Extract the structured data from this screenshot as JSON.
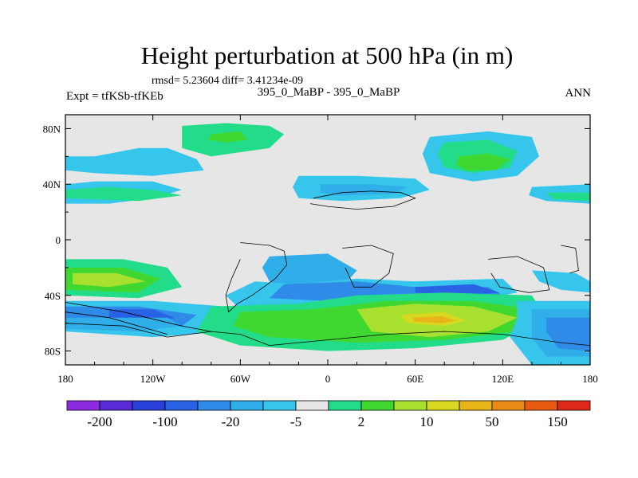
{
  "chart_data": {
    "type": "heatmap",
    "title": "Height perturbation at 500 hPa (in m)",
    "stats_line": "rmsd= 5.23604 diff= 3.41234e-09",
    "left_label": "Expt = tfKSb-tfKEb",
    "center_label": "395_0_MaBP - 395_0_MaBP",
    "right_label": "ANN",
    "x_ticks": [
      "180",
      "120W",
      "60W",
      "0",
      "60E",
      "120E",
      "180"
    ],
    "x_tick_values": [
      -180,
      -120,
      -60,
      0,
      60,
      120,
      180
    ],
    "y_ticks": [
      "80N",
      "40N",
      "0",
      "40S",
      "80S"
    ],
    "y_tick_values": [
      80,
      40,
      0,
      -40,
      -80
    ],
    "xlim": [
      -180,
      180
    ],
    "ylim": [
      -90,
      90
    ],
    "colorbar": {
      "colors": [
        "#8a2be2",
        "#5a2ad6",
        "#2840d8",
        "#2a62e6",
        "#2f8ae8",
        "#30aee9",
        "#36c6ec",
        "#e6e6e6",
        "#22dc8a",
        "#40d830",
        "#a8e030",
        "#d8d820",
        "#e8b418",
        "#e88a14",
        "#e85a10",
        "#e02818"
      ],
      "labels": [
        "-200",
        "-100",
        "-20",
        "-5",
        "2",
        "10",
        "50",
        "150"
      ]
    },
    "fields": [
      {
        "lon": -150,
        "lat": 12,
        "level": 1
      },
      {
        "lon": -100,
        "lat": -3,
        "level": 1
      }
    ]
  },
  "map": {
    "regions": [
      {
        "level": 1,
        "color_index": 6,
        "points": [
          [
            -180,
            60
          ],
          [
            -160,
            60
          ],
          [
            -130,
            66
          ],
          [
            -110,
            66
          ],
          [
            -90,
            58
          ],
          [
            -85,
            50
          ],
          [
            -120,
            46
          ],
          [
            -160,
            48
          ],
          [
            -180,
            50
          ]
        ]
      },
      {
        "level": 1,
        "color_index": 6,
        "points": [
          [
            -180,
            26
          ],
          [
            -150,
            26
          ],
          [
            -120,
            30
          ],
          [
            -100,
            36
          ],
          [
            -120,
            42
          ],
          [
            -160,
            42
          ],
          [
            -180,
            40
          ]
        ]
      },
      {
        "level": 1,
        "color_index": 8,
        "points": [
          [
            -180,
            36
          ],
          [
            -150,
            38
          ],
          [
            -120,
            36
          ],
          [
            -100,
            32
          ],
          [
            -130,
            28
          ],
          [
            -180,
            30
          ]
        ]
      },
      {
        "level": 1,
        "color_index": 8,
        "points": [
          [
            -100,
            82
          ],
          [
            -70,
            84
          ],
          [
            -40,
            82
          ],
          [
            -30,
            76
          ],
          [
            -40,
            66
          ],
          [
            -80,
            60
          ],
          [
            -100,
            66
          ]
        ]
      },
      {
        "level": 1,
        "color_index": 9,
        "points": [
          [
            -80,
            76
          ],
          [
            -60,
            78
          ],
          [
            -55,
            72
          ],
          [
            -70,
            70
          ],
          [
            -82,
            72
          ]
        ]
      },
      {
        "level": 1,
        "color_index": 6,
        "points": [
          [
            70,
            74
          ],
          [
            110,
            78
          ],
          [
            140,
            74
          ],
          [
            145,
            60
          ],
          [
            130,
            46
          ],
          [
            100,
            42
          ],
          [
            70,
            48
          ],
          [
            65,
            62
          ]
        ]
      },
      {
        "level": 1,
        "color_index": 8,
        "points": [
          [
            80,
            70
          ],
          [
            110,
            72
          ],
          [
            130,
            64
          ],
          [
            125,
            52
          ],
          [
            100,
            48
          ],
          [
            80,
            52
          ],
          [
            75,
            62
          ]
        ]
      },
      {
        "level": 1,
        "color_index": 9,
        "points": [
          [
            90,
            60
          ],
          [
            110,
            62
          ],
          [
            125,
            58
          ],
          [
            115,
            50
          ],
          [
            95,
            50
          ],
          [
            88,
            54
          ]
        ]
      },
      {
        "level": 1,
        "color_index": 6,
        "points": [
          [
            -20,
            46
          ],
          [
            20,
            46
          ],
          [
            60,
            44
          ],
          [
            70,
            36
          ],
          [
            50,
            30
          ],
          [
            10,
            28
          ],
          [
            -20,
            30
          ],
          [
            -24,
            38
          ]
        ]
      },
      {
        "level": 1,
        "color_index": 5,
        "points": [
          [
            -5,
            40
          ],
          [
            30,
            40
          ],
          [
            55,
            38
          ],
          [
            45,
            33
          ],
          [
            10,
            32
          ],
          [
            -5,
            34
          ]
        ]
      },
      {
        "level": 1,
        "color_index": 6,
        "points": [
          [
            140,
            38
          ],
          [
            180,
            40
          ],
          [
            180,
            26
          ],
          [
            150,
            28
          ],
          [
            138,
            32
          ]
        ]
      },
      {
        "level": 1,
        "color_index": 8,
        "points": [
          [
            150,
            34
          ],
          [
            180,
            34
          ],
          [
            180,
            28
          ],
          [
            155,
            29
          ]
        ]
      },
      {
        "level": 1,
        "color_index": 5,
        "points": [
          [
            -40,
            -12
          ],
          [
            0,
            -10
          ],
          [
            20,
            -22
          ],
          [
            10,
            -34
          ],
          [
            -20,
            -38
          ],
          [
            -40,
            -30
          ],
          [
            -45,
            -20
          ]
        ]
      },
      {
        "level": 1,
        "color_index": 6,
        "points": [
          [
            -50,
            -30
          ],
          [
            -20,
            -32
          ],
          [
            20,
            -28
          ],
          [
            60,
            -30
          ],
          [
            120,
            -28
          ],
          [
            130,
            -38
          ],
          [
            100,
            -44
          ],
          [
            40,
            -48
          ],
          [
            -20,
            -52
          ],
          [
            -60,
            -50
          ],
          [
            -70,
            -40
          ]
        ]
      },
      {
        "level": 1,
        "color_index": 4,
        "points": [
          [
            -30,
            -32
          ],
          [
            20,
            -30
          ],
          [
            60,
            -34
          ],
          [
            110,
            -34
          ],
          [
            120,
            -40
          ],
          [
            60,
            -42
          ],
          [
            0,
            -44
          ],
          [
            -40,
            -42
          ]
        ]
      },
      {
        "level": 1,
        "color_index": 3,
        "points": [
          [
            60,
            -34
          ],
          [
            100,
            -32
          ],
          [
            118,
            -38
          ],
          [
            90,
            -40
          ],
          [
            60,
            -38
          ]
        ]
      },
      {
        "level": 1,
        "color_index": 8,
        "points": [
          [
            -180,
            -14
          ],
          [
            -140,
            -14
          ],
          [
            -110,
            -20
          ],
          [
            -100,
            -34
          ],
          [
            -130,
            -42
          ],
          [
            -180,
            -40
          ]
        ]
      },
      {
        "level": 1,
        "color_index": 9,
        "points": [
          [
            -180,
            -20
          ],
          [
            -140,
            -20
          ],
          [
            -115,
            -28
          ],
          [
            -130,
            -38
          ],
          [
            -180,
            -36
          ]
        ]
      },
      {
        "level": 1,
        "color_index": 10,
        "points": [
          [
            -175,
            -24
          ],
          [
            -145,
            -24
          ],
          [
            -125,
            -30
          ],
          [
            -150,
            -34
          ],
          [
            -175,
            -32
          ]
        ]
      },
      {
        "level": 1,
        "color_index": 6,
        "points": [
          [
            -180,
            -44
          ],
          [
            -120,
            -44
          ],
          [
            -70,
            -48
          ],
          [
            -70,
            -66
          ],
          [
            -120,
            -70
          ],
          [
            -180,
            -66
          ]
        ]
      },
      {
        "level": 1,
        "color_index": 4,
        "points": [
          [
            -180,
            -48
          ],
          [
            -130,
            -48
          ],
          [
            -90,
            -54
          ],
          [
            -100,
            -62
          ],
          [
            -150,
            -64
          ],
          [
            -180,
            -60
          ]
        ]
      },
      {
        "level": 1,
        "color_index": 3,
        "points": [
          [
            -150,
            -50
          ],
          [
            -120,
            -50
          ],
          [
            -105,
            -56
          ],
          [
            -120,
            -60
          ],
          [
            -150,
            -58
          ]
        ]
      },
      {
        "level": 1,
        "color_index": 8,
        "points": [
          [
            -80,
            -48
          ],
          [
            -20,
            -46
          ],
          [
            20,
            -40
          ],
          [
            80,
            -38
          ],
          [
            140,
            -40
          ],
          [
            150,
            -56
          ],
          [
            120,
            -72
          ],
          [
            60,
            -78
          ],
          [
            0,
            -80
          ],
          [
            -60,
            -76
          ],
          [
            -90,
            -66
          ]
        ]
      },
      {
        "level": 1,
        "color_index": 9,
        "points": [
          [
            -60,
            -52
          ],
          [
            -10,
            -50
          ],
          [
            40,
            -44
          ],
          [
            100,
            -44
          ],
          [
            140,
            -50
          ],
          [
            130,
            -66
          ],
          [
            80,
            -72
          ],
          [
            20,
            -74
          ],
          [
            -40,
            -70
          ],
          [
            -65,
            -62
          ]
        ]
      },
      {
        "level": 1,
        "color_index": 10,
        "points": [
          [
            20,
            -50
          ],
          [
            60,
            -46
          ],
          [
            100,
            -48
          ],
          [
            130,
            -56
          ],
          [
            110,
            -66
          ],
          [
            70,
            -70
          ],
          [
            30,
            -66
          ]
        ]
      },
      {
        "level": 1,
        "color_index": 11,
        "points": [
          [
            50,
            -54
          ],
          [
            80,
            -52
          ],
          [
            95,
            -58
          ],
          [
            80,
            -62
          ],
          [
            55,
            -60
          ]
        ]
      },
      {
        "level": 1,
        "color_index": 12,
        "points": [
          [
            58,
            -56
          ],
          [
            78,
            -55
          ],
          [
            88,
            -58
          ],
          [
            78,
            -60
          ],
          [
            60,
            -59
          ]
        ]
      },
      {
        "level": 1,
        "color_index": 6,
        "points": [
          [
            130,
            -44
          ],
          [
            180,
            -44
          ],
          [
            180,
            -90
          ],
          [
            140,
            -90
          ],
          [
            125,
            -70
          ],
          [
            130,
            -56
          ]
        ]
      },
      {
        "level": 1,
        "color_index": 5,
        "points": [
          [
            140,
            -50
          ],
          [
            180,
            -50
          ],
          [
            180,
            -84
          ],
          [
            150,
            -84
          ],
          [
            140,
            -70
          ]
        ]
      },
      {
        "level": 1,
        "color_index": 4,
        "points": [
          [
            150,
            -56
          ],
          [
            180,
            -56
          ],
          [
            180,
            -80
          ],
          [
            158,
            -78
          ],
          [
            150,
            -66
          ]
        ]
      },
      {
        "level": 1,
        "color_index": 5,
        "points": [
          [
            -180,
            -56
          ],
          [
            -110,
            -56
          ],
          [
            -100,
            -62
          ],
          [
            -130,
            -66
          ],
          [
            -180,
            -64
          ]
        ]
      },
      {
        "level": 1,
        "color_index": 6,
        "points": [
          [
            140,
            -22
          ],
          [
            170,
            -24
          ],
          [
            180,
            -30
          ],
          [
            180,
            -38
          ],
          [
            160,
            -36
          ],
          [
            145,
            -30
          ]
        ]
      }
    ],
    "coast": [
      [
        [
          -10,
          30
        ],
        [
          10,
          34
        ],
        [
          30,
          35
        ],
        [
          50,
          34
        ],
        [
          60,
          30
        ],
        [
          45,
          24
        ],
        [
          20,
          22
        ],
        [
          0,
          24
        ],
        [
          -12,
          26
        ]
      ],
      [
        [
          -60,
          -2
        ],
        [
          -40,
          -4
        ],
        [
          -30,
          -8
        ],
        [
          -28,
          -18
        ],
        [
          -36,
          -28
        ],
        [
          -52,
          -40
        ],
        [
          -62,
          -46
        ],
        [
          -68,
          -52
        ],
        [
          -70,
          -40
        ],
        [
          -66,
          -28
        ],
        [
          -60,
          -14
        ]
      ],
      [
        [
          10,
          -6
        ],
        [
          30,
          -4
        ],
        [
          45,
          -10
        ],
        [
          42,
          -24
        ],
        [
          30,
          -34
        ],
        [
          18,
          -34
        ],
        [
          12,
          -20
        ]
      ],
      [
        [
          110,
          -14
        ],
        [
          130,
          -12
        ],
        [
          148,
          -20
        ],
        [
          152,
          -36
        ],
        [
          138,
          -38
        ],
        [
          118,
          -34
        ],
        [
          112,
          -24
        ]
      ],
      [
        [
          160,
          -4
        ],
        [
          170,
          -6
        ],
        [
          172,
          -22
        ],
        [
          166,
          -24
        ]
      ],
      [
        [
          -180,
          -60
        ],
        [
          -140,
          -62
        ],
        [
          -110,
          -70
        ],
        [
          -80,
          -66
        ],
        [
          -60,
          -68
        ],
        [
          -40,
          -76
        ],
        [
          0,
          -72
        ],
        [
          40,
          -68
        ],
        [
          80,
          -66
        ],
        [
          120,
          -68
        ],
        [
          160,
          -74
        ],
        [
          180,
          -76
        ]
      ],
      [
        [
          -180,
          -45
        ],
        [
          -140,
          -52
        ],
        [
          -100,
          -62
        ],
        [
          -80,
          -66
        ]
      ],
      [
        [
          -180,
          -52
        ],
        [
          -150,
          -56
        ],
        [
          -110,
          -68
        ]
      ]
    ]
  }
}
